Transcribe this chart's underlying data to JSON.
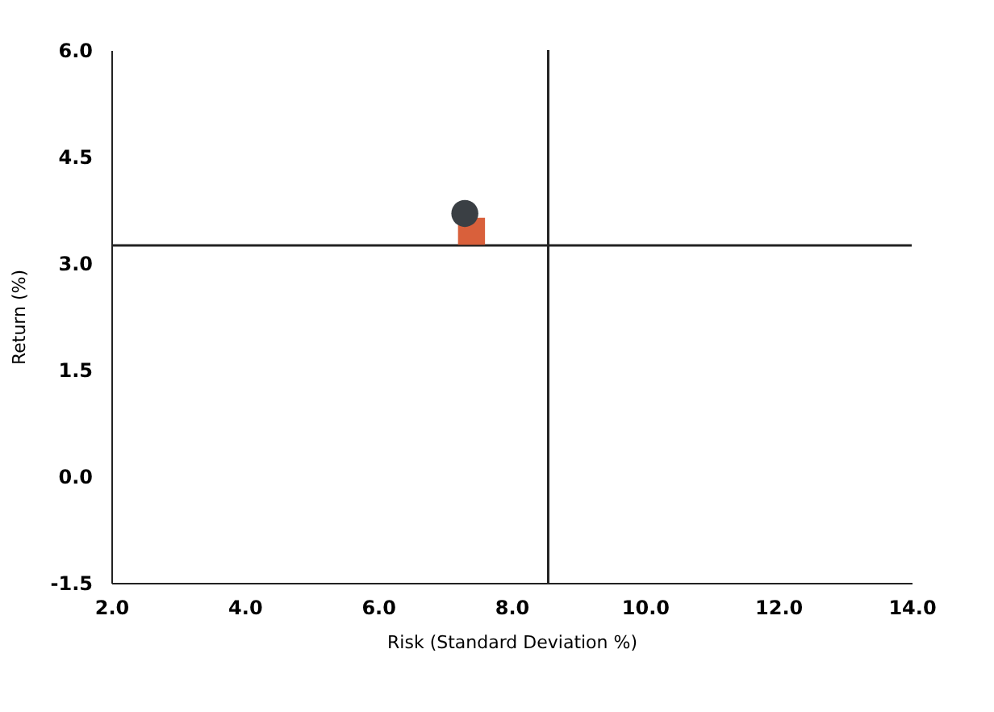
{
  "chart_data": {
    "type": "scatter",
    "xlabel": "Risk (Standard Deviation %)",
    "ylabel": "Return (%)",
    "xlim": [
      2.0,
      14.0
    ],
    "xticks": [
      {
        "value": 2,
        "label": "2.0"
      },
      {
        "value": 4,
        "label": "4.0"
      },
      {
        "value": 6,
        "label": "6.0"
      },
      {
        "value": 8,
        "label": "8.0"
      },
      {
        "value": 10,
        "label": "10.0"
      },
      {
        "value": 12,
        "label": "12.0"
      },
      {
        "value": 14,
        "label": "14.0"
      }
    ],
    "ylim": [
      -1.5,
      6.0
    ],
    "yticks": [
      {
        "value": -1.5,
        "label": "-1.5"
      },
      {
        "value": 0,
        "label": "0.0"
      },
      {
        "value": 1.5,
        "label": "1.5"
      },
      {
        "value": 3,
        "label": "3.0"
      },
      {
        "value": 4.5,
        "label": "4.5"
      },
      {
        "value": 6,
        "label": "6.0"
      }
    ],
    "series": [
      {
        "color": "#d9603b",
        "marker": "square",
        "x": [
          7.4
        ],
        "values": [
          3.45
        ]
      },
      {
        "color": "#3a3f44",
        "marker": "circle",
        "x": [
          7.3
        ],
        "values": [
          3.7
        ]
      }
    ],
    "ref_lines": [
      {
        "axis": "x",
        "value": 8.55,
        "color": "#222222"
      },
      {
        "axis": "y",
        "value": 3.25,
        "color": "#222222"
      }
    ],
    "grid": false,
    "legend": false
  }
}
